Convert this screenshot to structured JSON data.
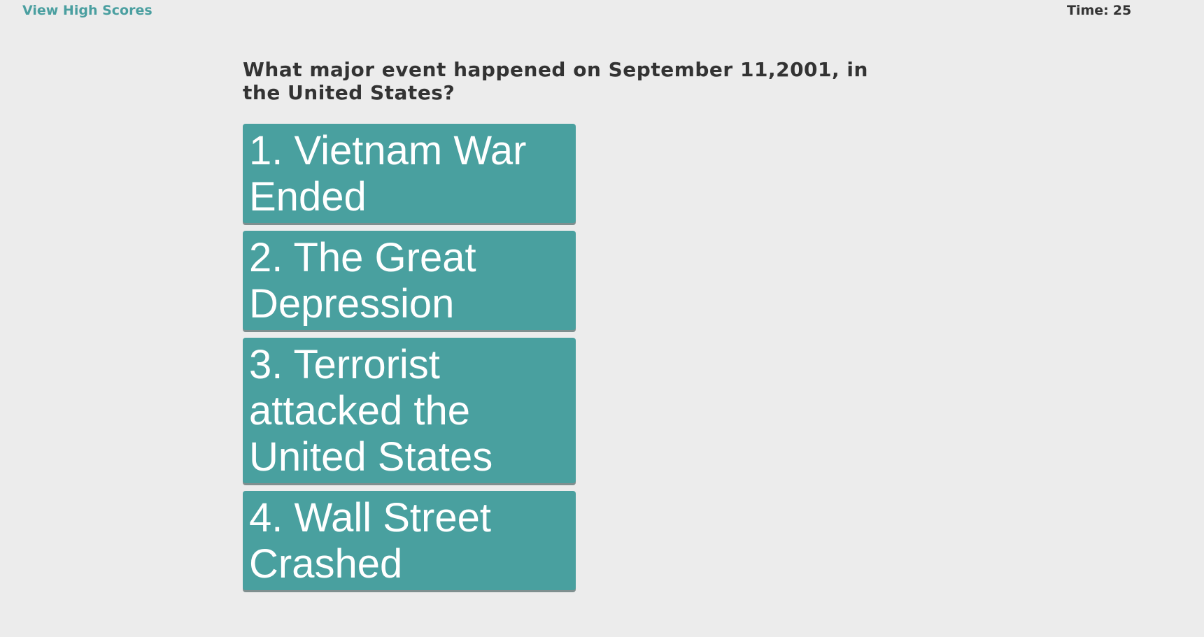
{
  "header": {
    "high_scores_label": "View High Scores",
    "timer_label": "Time:",
    "timer_value": "25"
  },
  "quiz": {
    "question": "What major event happened on September 11,2001, in the United States?",
    "choices": [
      {
        "number": "1",
        "text": "Vietnam War Ended"
      },
      {
        "number": "2",
        "text": "The Great Depression"
      },
      {
        "number": "3",
        "text": "Terrorist attacked the United States"
      },
      {
        "number": "4",
        "text": "Wall Street Crashed"
      }
    ]
  },
  "colors": {
    "background": "#ececec",
    "accent": "#49a09f",
    "link": "#4a9fa0",
    "text": "#333333"
  }
}
